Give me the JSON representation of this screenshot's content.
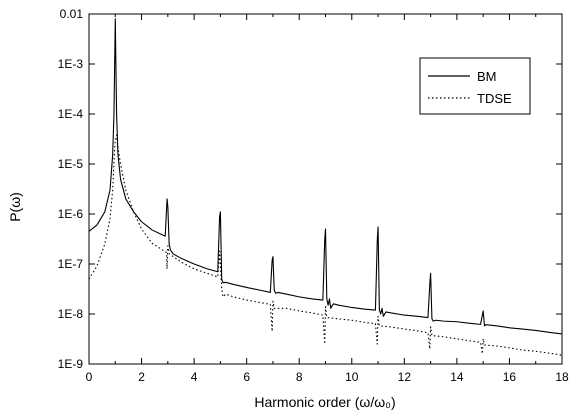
{
  "chart_data": {
    "type": "line",
    "title": "",
    "xlabel": "Harmonic order (ω/ω₀)",
    "ylabel": "P(ω)",
    "xlim": [
      0,
      18
    ],
    "ylim": [
      1e-09,
      0.01
    ],
    "yscale": "log",
    "xticks": [
      0,
      2,
      4,
      6,
      8,
      10,
      12,
      14,
      16,
      18
    ],
    "xtick_labels": [
      "0",
      "2",
      "4",
      "6",
      "8",
      "10",
      "12",
      "14",
      "16",
      "18"
    ],
    "yticks": [
      1e-09,
      1e-08,
      1e-07,
      1e-06,
      1e-05,
      0.0001,
      0.001,
      0.01
    ],
    "ytick_labels": [
      "1E-9",
      "1E-8",
      "1E-7",
      "1E-6",
      "1E-5",
      "1E-4",
      "1E-3",
      "0.01"
    ],
    "grid": false,
    "legend_position": "top-right",
    "series": [
      {
        "name": "BM",
        "style": "solid",
        "color": "#000000",
        "points": [
          [
            0,
            4.5e-07
          ],
          [
            0.3,
            6e-07
          ],
          [
            0.6,
            1.1e-06
          ],
          [
            0.8,
            3e-06
          ],
          [
            0.9,
            1.5e-05
          ],
          [
            0.95,
            0.0001
          ],
          [
            1.0,
            0.008
          ],
          [
            1.05,
            0.0001
          ],
          [
            1.1,
            1.6e-05
          ],
          [
            1.2,
            5e-06
          ],
          [
            1.4,
            2e-06
          ],
          [
            1.7,
            1.1e-06
          ],
          [
            2.0,
            7e-07
          ],
          [
            2.4,
            4.8e-07
          ],
          [
            2.8,
            3.8e-07
          ],
          [
            2.9,
            3.6e-07
          ],
          [
            2.97,
            2e-06
          ],
          [
            3.0,
            1.4e-06
          ],
          [
            3.05,
            2.5e-07
          ],
          [
            3.1,
            1.9e-07
          ],
          [
            3.2,
            1.6e-07
          ],
          [
            3.5,
            1.3e-07
          ],
          [
            4.0,
            1e-07
          ],
          [
            4.5,
            8e-08
          ],
          [
            4.9,
            7e-08
          ],
          [
            4.97,
            9e-07
          ],
          [
            5.0,
            1.1e-06
          ],
          [
            5.05,
            5e-08
          ],
          [
            5.1,
            4.2e-08
          ],
          [
            5.2,
            4.3e-08
          ],
          [
            5.5,
            3.9e-08
          ],
          [
            6.0,
            3.4e-08
          ],
          [
            6.5,
            3e-08
          ],
          [
            6.9,
            2.7e-08
          ],
          [
            6.97,
            1.2e-07
          ],
          [
            7.0,
            1.4e-07
          ],
          [
            7.05,
            3e-08
          ],
          [
            7.1,
            2.6e-08
          ],
          [
            7.2,
            2.7e-08
          ],
          [
            7.5,
            2.5e-08
          ],
          [
            8.0,
            2.2e-08
          ],
          [
            8.5,
            2e-08
          ],
          [
            8.9,
            1.9e-08
          ],
          [
            8.97,
            3e-07
          ],
          [
            9.0,
            5e-07
          ],
          [
            9.05,
            2e-08
          ],
          [
            9.1,
            1.5e-08
          ],
          [
            9.15,
            2e-08
          ],
          [
            9.2,
            1.3e-08
          ],
          [
            9.3,
            1.6e-08
          ],
          [
            9.5,
            1.5e-08
          ],
          [
            10.0,
            1.35e-08
          ],
          [
            10.5,
            1.25e-08
          ],
          [
            10.9,
            1.2e-08
          ],
          [
            10.97,
            3e-07
          ],
          [
            11.0,
            5.5e-07
          ],
          [
            11.05,
            1.2e-08
          ],
          [
            11.1,
            1e-08
          ],
          [
            11.15,
            1.3e-08
          ],
          [
            11.2,
            9e-09
          ],
          [
            11.3,
            1.1e-08
          ],
          [
            11.5,
            1.05e-08
          ],
          [
            12.0,
            9.5e-09
          ],
          [
            12.5,
            9e-09
          ],
          [
            12.9,
            8.5e-09
          ],
          [
            12.97,
            4e-08
          ],
          [
            13.0,
            6.5e-08
          ],
          [
            13.05,
            8e-09
          ],
          [
            13.1,
            7.2e-09
          ],
          [
            13.2,
            7.5e-09
          ],
          [
            13.5,
            7.2e-09
          ],
          [
            14.0,
            7e-09
          ],
          [
            14.5,
            6.5e-09
          ],
          [
            14.9,
            6.2e-09
          ],
          [
            15.0,
            1.15e-08
          ],
          [
            15.05,
            5.8e-09
          ],
          [
            15.1,
            6.1e-09
          ],
          [
            15.5,
            5.8e-09
          ],
          [
            16.0,
            5.3e-09
          ],
          [
            16.5,
            5e-09
          ],
          [
            17.0,
            4.7e-09
          ],
          [
            17.5,
            4.3e-09
          ],
          [
            18.0,
            4e-09
          ]
        ]
      },
      {
        "name": "TDSE",
        "style": "dotted",
        "color": "#000000",
        "points": [
          [
            0,
            5e-08
          ],
          [
            0.3,
            9e-08
          ],
          [
            0.6,
            2.5e-07
          ],
          [
            0.8,
            8e-07
          ],
          [
            0.9,
            3e-06
          ],
          [
            0.97,
            1.8e-05
          ],
          [
            1.0,
            3e-05
          ],
          [
            1.05,
            3.8e-05
          ],
          [
            1.1,
            2.2e-05
          ],
          [
            1.2,
            1e-05
          ],
          [
            1.4,
            3e-06
          ],
          [
            1.7,
            1.1e-06
          ],
          [
            2.0,
            5e-07
          ],
          [
            2.4,
            2.6e-07
          ],
          [
            2.8,
            1.9e-07
          ],
          [
            2.95,
            1.7e-07
          ],
          [
            2.97,
            8e-08
          ],
          [
            3.0,
            2.3e-07
          ],
          [
            3.05,
            1.6e-07
          ],
          [
            3.5,
            1.1e-07
          ],
          [
            4.0,
            8e-08
          ],
          [
            4.5,
            6.5e-08
          ],
          [
            4.9,
            5.5e-08
          ],
          [
            4.97,
            1.8e-07
          ],
          [
            5.05,
            3.2e-08
          ],
          [
            5.1,
            2.2e-08
          ],
          [
            5.2,
            2.5e-08
          ],
          [
            5.5,
            2.2e-08
          ],
          [
            6.0,
            1.9e-08
          ],
          [
            6.5,
            1.7e-08
          ],
          [
            6.9,
            1.55e-08
          ],
          [
            6.97,
            4.5e-09
          ],
          [
            7.0,
            1.8e-08
          ],
          [
            7.05,
            1.3e-08
          ],
          [
            7.5,
            1.3e-08
          ],
          [
            8.0,
            1.15e-08
          ],
          [
            8.5,
            1.05e-08
          ],
          [
            8.9,
            9.5e-09
          ],
          [
            8.97,
            2.5e-09
          ],
          [
            9.0,
            1.4e-08
          ],
          [
            9.05,
            8.5e-09
          ],
          [
            9.5,
            8e-09
          ],
          [
            10.0,
            7.5e-09
          ],
          [
            10.5,
            6.8e-09
          ],
          [
            10.9,
            6.4e-09
          ],
          [
            10.97,
            2.5e-09
          ],
          [
            11.0,
            9e-09
          ],
          [
            11.05,
            5.8e-09
          ],
          [
            11.5,
            5.5e-09
          ],
          [
            12.0,
            5e-09
          ],
          [
            12.5,
            4.6e-09
          ],
          [
            12.9,
            4.2e-09
          ],
          [
            12.97,
            2e-09
          ],
          [
            13.0,
            5.5e-09
          ],
          [
            13.05,
            3.7e-09
          ],
          [
            13.5,
            3.5e-09
          ],
          [
            14.0,
            3.2e-09
          ],
          [
            14.5,
            2.9e-09
          ],
          [
            14.9,
            2.7e-09
          ],
          [
            14.97,
            1.6e-09
          ],
          [
            15.0,
            3.2e-09
          ],
          [
            15.05,
            2.4e-09
          ],
          [
            15.5,
            2.3e-09
          ],
          [
            16.0,
            2.1e-09
          ],
          [
            16.5,
            1.9e-09
          ],
          [
            17.0,
            1.8e-09
          ],
          [
            17.5,
            1.65e-09
          ],
          [
            18.0,
            1.5e-09
          ]
        ]
      }
    ]
  }
}
